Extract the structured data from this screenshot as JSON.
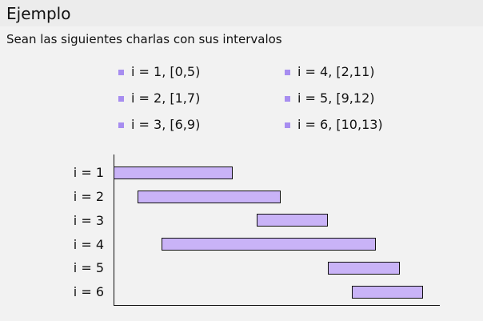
{
  "slide": {
    "title": "Ejemplo",
    "subtitle": "Sean las siguientes charlas con sus intervalos"
  },
  "talks": [
    {
      "label": "i = 1, [0,5)",
      "i": 1,
      "start": 0,
      "end": 5
    },
    {
      "label": "i = 2, [1,7)",
      "i": 2,
      "start": 1,
      "end": 7
    },
    {
      "label": "i = 3, [6,9)",
      "i": 3,
      "start": 6,
      "end": 9
    },
    {
      "label": "i = 4, [2,11)",
      "i": 4,
      "start": 2,
      "end": 11
    },
    {
      "label": "i = 5, [9,12)",
      "i": 5,
      "start": 9,
      "end": 12
    },
    {
      "label": "i = 6, [10,13)",
      "i": 6,
      "start": 10,
      "end": 13
    }
  ],
  "row_labels": [
    "i = 1",
    "i = 2",
    "i = 3",
    "i = 4",
    "i = 5",
    "i = 6"
  ],
  "colors": {
    "bullet": "#a78df0",
    "bar_fill": "#c9b3f7",
    "bar_stroke": "#111111"
  }
}
